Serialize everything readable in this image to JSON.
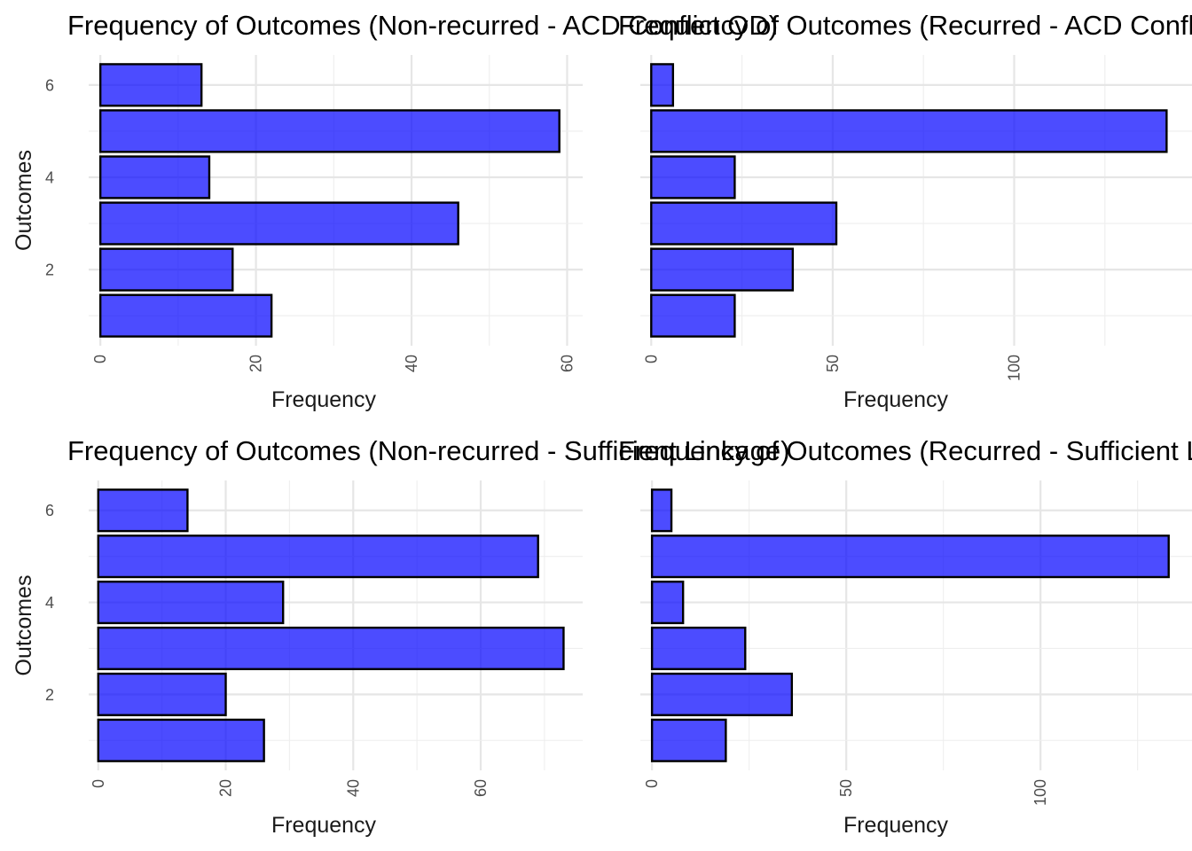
{
  "chart_data": [
    {
      "type": "bar",
      "orientation": "horizontal",
      "title": "Frequency of Outcomes (Non-recurred - ACD Conflict OD)",
      "xlabel": "Frequency",
      "ylabel": "Outcomes",
      "categories": [
        1,
        2,
        3,
        4,
        5,
        6
      ],
      "values": [
        22,
        17,
        46,
        14,
        59,
        13
      ],
      "xlim": [
        -1.5,
        62
      ],
      "ylim": [
        0.35,
        6.65
      ],
      "x_ticks": [
        0,
        20,
        40,
        60
      ],
      "y_ticks": [
        2,
        4,
        6
      ],
      "show_y_tick_labels": true,
      "bar_color": "#0000ff",
      "bar_opacity": 0.7,
      "grid": true
    },
    {
      "type": "bar",
      "orientation": "horizontal",
      "title": "Frequency of Outcomes (Recurred - ACD Conflict OD)",
      "xlabel": "Frequency",
      "ylabel": "",
      "categories": [
        1,
        2,
        3,
        4,
        5,
        6
      ],
      "values": [
        23,
        39,
        51,
        23,
        142,
        6
      ],
      "xlim": [
        -3,
        149
      ],
      "ylim": [
        0.35,
        6.65
      ],
      "x_ticks": [
        0,
        50,
        100
      ],
      "y_ticks": [
        2,
        4,
        6
      ],
      "show_y_tick_labels": false,
      "bar_color": "#0000ff",
      "bar_opacity": 0.7,
      "grid": true
    },
    {
      "type": "bar",
      "orientation": "horizontal",
      "title": "Frequency of Outcomes (Non-recurred - Sufficient Linkage)",
      "xlabel": "Frequency",
      "ylabel": "Outcomes",
      "categories": [
        1,
        2,
        3,
        4,
        5,
        6
      ],
      "values": [
        26,
        20,
        73,
        29,
        69,
        14
      ],
      "xlim": [
        -1.5,
        76
      ],
      "ylim": [
        0.35,
        6.65
      ],
      "x_ticks": [
        0,
        20,
        40,
        60
      ],
      "y_ticks": [
        2,
        4,
        6
      ],
      "show_y_tick_labels": true,
      "bar_color": "#0000ff",
      "bar_opacity": 0.7,
      "grid": true
    },
    {
      "type": "bar",
      "orientation": "horizontal",
      "title": "Frequency of Outcomes (Recurred - Sufficient Linkage)",
      "xlabel": "Frequency",
      "ylabel": "",
      "categories": [
        1,
        2,
        3,
        4,
        5,
        6
      ],
      "values": [
        19,
        36,
        24,
        8,
        133,
        5
      ],
      "xlim": [
        -3,
        139
      ],
      "ylim": [
        0.35,
        6.65
      ],
      "x_ticks": [
        0,
        50,
        100
      ],
      "y_ticks": [
        2,
        4,
        6
      ],
      "show_y_tick_labels": false,
      "bar_color": "#0000ff",
      "bar_opacity": 0.7,
      "grid": true
    }
  ]
}
